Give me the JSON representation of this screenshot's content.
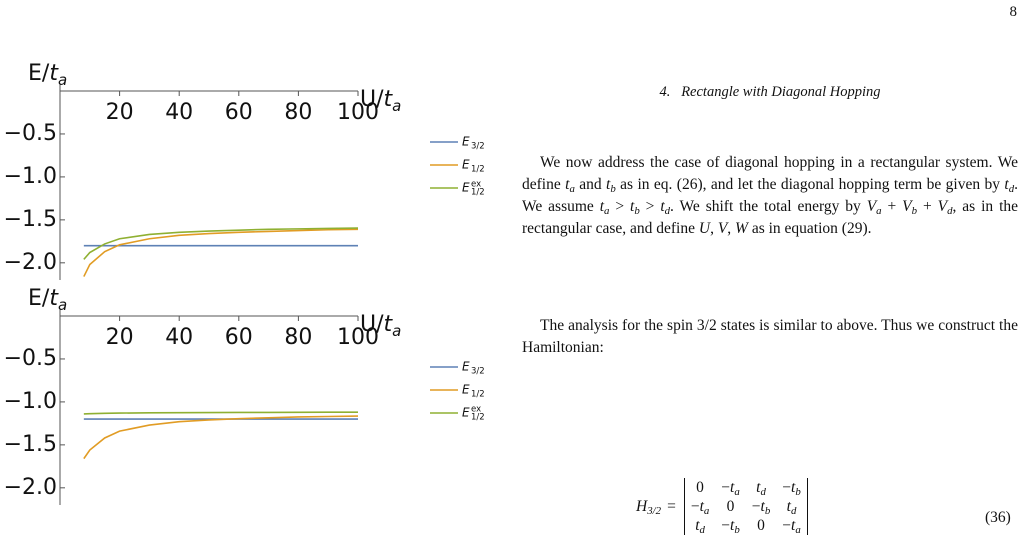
{
  "page_number": "8",
  "section": {
    "number": "4.",
    "title": "Rectangle with Diagonal Hopping"
  },
  "paragraphs": [
    [
      "We now address the case of diagonal hopping in a rectangular system. We define ",
      {
        "m": "t",
        "sub": "a"
      },
      " and ",
      {
        "m": "t",
        "sub": "b"
      },
      " as in eq. (26), and let the diagonal hopping term be given by ",
      {
        "m": "t",
        "sub": "d"
      },
      ". We assume ",
      {
        "m": "t",
        "sub": "a"
      },
      " > ",
      {
        "m": "t",
        "sub": "b"
      },
      " > ",
      {
        "m": "t",
        "sub": "d"
      },
      ". We shift the total energy by ",
      {
        "m": "V",
        "sub": "a"
      },
      " + ",
      {
        "m": "V",
        "sub": "b"
      },
      " + ",
      {
        "m": "V",
        "sub": "d"
      },
      ", as in the rectangular case, and define ",
      {
        "m": "U"
      },
      ", ",
      {
        "m": "V"
      },
      ", ",
      {
        "m": "W"
      },
      " as in equation (29)."
    ],
    [
      "The analysis for the spin 3/2 states is similar to above. Thus we construct the Hamiltonian:"
    ]
  ],
  "equation": {
    "lhs": {
      "m": "H",
      "sub": "3/2"
    },
    "eq": "=",
    "number": "(36)",
    "matrix": [
      [
        "0",
        {
          "pre": "−",
          "m": "t",
          "sub": "a"
        },
        {
          "m": "t",
          "sub": "d"
        },
        {
          "pre": "−",
          "m": "t",
          "sub": "b"
        }
      ],
      [
        {
          "pre": "−",
          "m": "t",
          "sub": "a"
        },
        "0",
        {
          "pre": "−",
          "m": "t",
          "sub": "b"
        },
        {
          "m": "t",
          "sub": "d"
        }
      ],
      [
        {
          "m": "t",
          "sub": "d"
        },
        {
          "pre": "−",
          "m": "t",
          "sub": "b"
        },
        "0",
        {
          "pre": "−",
          "m": "t",
          "sub": "a"
        }
      ]
    ]
  },
  "chart_data": [
    {
      "type": "line",
      "ylabel": "E/",
      "ylabel_var": "t",
      "ylabel_sub": "a",
      "xlabel": "U/",
      "xlabel_var": "t",
      "xlabel_sub": "a",
      "xlim": [
        0,
        100
      ],
      "xticks": [
        20,
        40,
        60,
        80,
        100
      ],
      "ylim": [
        -2.2,
        0
      ],
      "yticks": [
        {
          "value": -0.5,
          "label": "−0.5"
        },
        {
          "value": -1.0,
          "label": "−1.0"
        },
        {
          "value": -1.5,
          "label": "−1.5"
        },
        {
          "value": -2.0,
          "label": "−2.0"
        }
      ],
      "x": [
        8,
        10,
        15,
        20,
        30,
        40,
        50,
        60,
        70,
        80,
        90,
        100
      ],
      "series": [
        {
          "name": "E",
          "sub": "3/2",
          "color": "#5e81b5",
          "values": [
            -1.8,
            -1.8,
            -1.8,
            -1.8,
            -1.8,
            -1.8,
            -1.8,
            -1.8,
            -1.8,
            -1.8,
            -1.8,
            -1.8
          ]
        },
        {
          "name": "E",
          "sub": "1/2",
          "color": "#e19c24",
          "values": [
            -2.16,
            -2.02,
            -1.87,
            -1.79,
            -1.72,
            -1.68,
            -1.66,
            -1.645,
            -1.635,
            -1.625,
            -1.615,
            -1.61
          ]
        },
        {
          "name": "E",
          "sub": "1/2",
          "sup": "ex",
          "color": "#8fb032",
          "values": [
            -1.96,
            -1.88,
            -1.78,
            -1.72,
            -1.67,
            -1.645,
            -1.63,
            -1.62,
            -1.61,
            -1.605,
            -1.6,
            -1.595
          ]
        }
      ]
    },
    {
      "type": "line",
      "ylabel": "E/",
      "ylabel_var": "t",
      "ylabel_sub": "a",
      "xlabel": "U/",
      "xlabel_var": "t",
      "xlabel_sub": "a",
      "xlim": [
        0,
        100
      ],
      "xticks": [
        20,
        40,
        60,
        80,
        100
      ],
      "ylim": [
        -2.2,
        0
      ],
      "yticks": [
        {
          "value": -0.5,
          "label": "−0.5"
        },
        {
          "value": -1.0,
          "label": "−1.0"
        },
        {
          "value": -1.5,
          "label": "−1.5"
        },
        {
          "value": -2.0,
          "label": "−2.0"
        }
      ],
      "x": [
        8,
        10,
        15,
        20,
        30,
        40,
        50,
        60,
        70,
        80,
        90,
        100
      ],
      "series": [
        {
          "name": "E",
          "sub": "3/2",
          "color": "#5e81b5",
          "values": [
            -1.2,
            -1.2,
            -1.2,
            -1.2,
            -1.2,
            -1.2,
            -1.2,
            -1.2,
            -1.2,
            -1.2,
            -1.2,
            -1.2
          ]
        },
        {
          "name": "E",
          "sub": "1/2",
          "color": "#e19c24",
          "values": [
            -1.66,
            -1.56,
            -1.42,
            -1.34,
            -1.27,
            -1.23,
            -1.21,
            -1.195,
            -1.185,
            -1.175,
            -1.17,
            -1.165
          ]
        },
        {
          "name": "E",
          "sub": "1/2",
          "sup": "ex",
          "color": "#8fb032",
          "values": [
            -1.14,
            -1.137,
            -1.133,
            -1.13,
            -1.127,
            -1.125,
            -1.124,
            -1.123,
            -1.122,
            -1.121,
            -1.12,
            -1.12
          ]
        }
      ]
    }
  ]
}
